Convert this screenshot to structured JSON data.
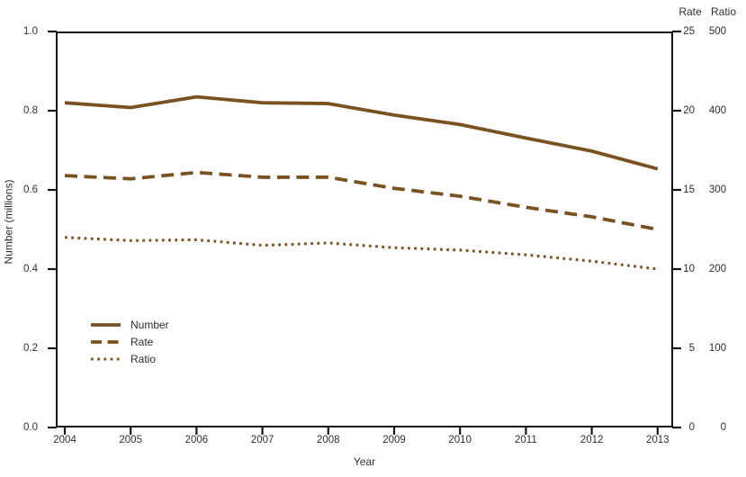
{
  "chart_data": {
    "type": "line",
    "x": [
      2004,
      2005,
      2006,
      2007,
      2008,
      2009,
      2010,
      2011,
      2012,
      2013
    ],
    "x_tick_labels": [
      "2004",
      "2005",
      "2006",
      "2007",
      "2008",
      "2009",
      "2010",
      "2011",
      "2012",
      "2013"
    ],
    "xlabel": "Year",
    "series": [
      {
        "name": "Number",
        "style": "solid",
        "axis": "left",
        "axis_max": 1,
        "values": [
          0.82,
          0.808,
          0.835,
          0.82,
          0.818,
          0.789,
          0.765,
          0.731,
          0.698,
          0.653
        ]
      },
      {
        "name": "Rate",
        "style": "dashed",
        "axis": "right-rate",
        "axis_max": 25,
        "values": [
          15.9,
          15.7,
          16.1,
          15.8,
          15.8,
          15.1,
          14.6,
          13.9,
          13.3,
          12.5
        ]
      },
      {
        "name": "Ratio",
        "style": "dotted",
        "axis": "right-ratio",
        "axis_max": 500,
        "values": [
          240,
          236,
          237,
          230,
          233,
          227,
          224,
          218,
          210,
          200
        ]
      }
    ],
    "left_axis": {
      "label": "Number (millions)",
      "ticks": [
        "0.0",
        "0.2",
        "0.4",
        "0.6",
        "0.8",
        "1.0"
      ],
      "range": [
        0,
        1
      ]
    },
    "right_axes": [
      {
        "header": "Rate",
        "ticks": [
          "0",
          "5",
          "10",
          "15",
          "20",
          "25"
        ],
        "range": [
          0,
          25
        ]
      },
      {
        "header": "Ratio",
        "ticks": [
          "0",
          "100",
          "200",
          "300",
          "400",
          "500"
        ],
        "range": [
          0,
          500
        ]
      }
    ],
    "legend_entries": [
      "Number",
      "Rate",
      "Ratio"
    ],
    "grid": false,
    "legend_position": "inside-lower-left",
    "colors": {
      "line": "#7a5222",
      "axis": "#161616",
      "text": "#2b2e33"
    }
  }
}
